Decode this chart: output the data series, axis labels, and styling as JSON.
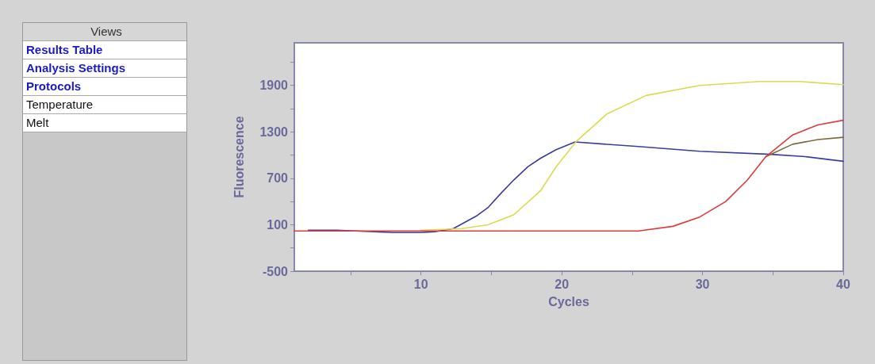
{
  "chart_data": {
    "type": "line",
    "xlabel": "Cycles",
    "ylabel": "Fluorescence",
    "annotations": [
      "Views",
      "Results Table",
      "Analysis Settings",
      "Protocols",
      "Temperature",
      "Melt"
    ],
    "xlim": [
      1,
      40
    ],
    "xticks": [
      {
        "value": 5,
        "label": null
      },
      10,
      {
        "value": 15,
        "label": null
      },
      20,
      {
        "value": 25,
        "label": null
      },
      30,
      {
        "value": 35,
        "label": null
      },
      40
    ],
    "ylim": [
      -500,
      2450
    ],
    "yticks": [
      -500,
      {
        "value": -200,
        "label": null
      },
      100,
      {
        "value": 400,
        "label": null
      },
      700,
      {
        "value": 1000,
        "label": null
      },
      1300,
      {
        "value": 1600,
        "label": null
      },
      1900,
      {
        "value": 2200,
        "label": null
      }
    ],
    "grid": false,
    "marker": "none",
    "line_style": "solid",
    "series": [
      {
        "color": "#3c3ca0",
        "x": [
          2,
          3,
          4,
          8,
          9,
          10,
          11,
          12.3,
          14,
          14.75,
          15.7,
          16.6,
          17.6,
          18.5,
          19.6,
          20.95,
          25.45,
          29.8,
          34.85,
          37.3,
          40
        ],
        "values": [
          30,
          30,
          30,
          0,
          0,
          0,
          10,
          50,
          220,
          320,
          510,
          680,
          850,
          960,
          1070,
          1170,
          1110,
          1050,
          1010,
          980,
          920
        ]
      },
      {
        "color": "#d8dc50",
        "x": [
          10,
          11.6,
          12.9,
          14.75,
          16.6,
          18.5,
          19.6,
          21,
          23.2,
          26,
          29.8,
          34.1,
          36.9,
          40
        ],
        "values": [
          30,
          40,
          50,
          100,
          230,
          540,
          850,
          1170,
          1530,
          1770,
          1900,
          1950,
          1950,
          1910
        ]
      },
      {
        "color": "#7a6a3a",
        "x": [
          34.5,
          36.4,
          38.2,
          40
        ],
        "values": [
          980,
          1140,
          1200,
          1230
        ]
      },
      {
        "color": "#e03a3a",
        "x": [
          1,
          10,
          20,
          25.45,
          27.9,
          29.8,
          31.65,
          33.2,
          34.5,
          36.4,
          38.2,
          40
        ],
        "values": [
          20,
          20,
          20,
          20,
          80,
          200,
          400,
          680,
          980,
          1260,
          1390,
          1450
        ]
      }
    ]
  }
}
